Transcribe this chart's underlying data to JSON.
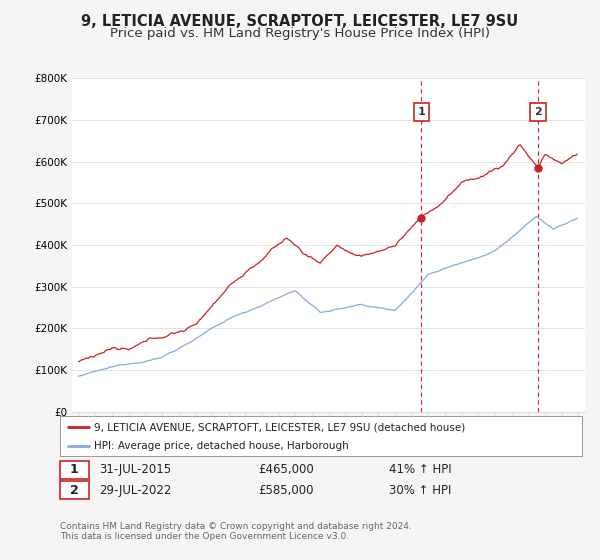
{
  "title": "9, LETICIA AVENUE, SCRAPTOFT, LEICESTER, LE7 9SU",
  "subtitle": "Price paid vs. HM Land Registry's House Price Index (HPI)",
  "ylim": [
    0,
    800000
  ],
  "yticks": [
    0,
    100000,
    200000,
    300000,
    400000,
    500000,
    600000,
    700000,
    800000
  ],
  "ytick_labels": [
    "£0",
    "£100K",
    "£200K",
    "£300K",
    "£400K",
    "£500K",
    "£600K",
    "£700K",
    "£800K"
  ],
  "sale1_yr": 2015.583,
  "sale1_price": 465000,
  "sale2_yr": 2022.583,
  "sale2_price": 585000,
  "property_color": "#cc2222",
  "hpi_color": "#88aadd",
  "vline_color": "#cc2222",
  "legend_property": "9, LETICIA AVENUE, SCRAPTOFT, LEICESTER, LE7 9SU (detached house)",
  "legend_hpi": "HPI: Average price, detached house, Harborough",
  "footnote1": "Contains HM Land Registry data © Crown copyright and database right 2024.",
  "footnote2": "This data is licensed under the Open Government Licence v3.0.",
  "bg_color": "#f5f5f5",
  "plot_bg": "#ffffff",
  "grid_color": "#dddddd",
  "box_edge_color": "#cc2222",
  "title_fontsize": 10.5,
  "subtitle_fontsize": 9.5,
  "label_fontsize": 8,
  "tick_fontsize": 7.5
}
